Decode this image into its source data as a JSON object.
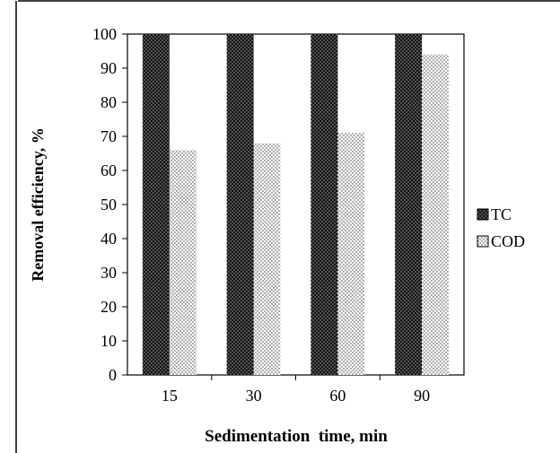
{
  "chart_data": {
    "type": "bar",
    "categories": [
      "15",
      "30",
      "60",
      "90"
    ],
    "series": [
      {
        "name": "TC",
        "values": [
          100,
          100,
          100,
          100
        ],
        "pattern": "dense-dots-dark"
      },
      {
        "name": "COD",
        "values": [
          66,
          68,
          71,
          94
        ],
        "pattern": "sparse-dots-light"
      }
    ],
    "xlabel": "Sedimentation  time, min",
    "ylabel": "Removal  efficiency, %",
    "ylim": [
      0,
      100
    ],
    "yticks": [
      0,
      10,
      20,
      30,
      40,
      50,
      60,
      70,
      80,
      90,
      100
    ],
    "grid": false,
    "legend": "right",
    "colors": {
      "tc_fill": "#1a1a1a",
      "cod_fill": "#f2f2f2",
      "axis": "#000000"
    }
  }
}
